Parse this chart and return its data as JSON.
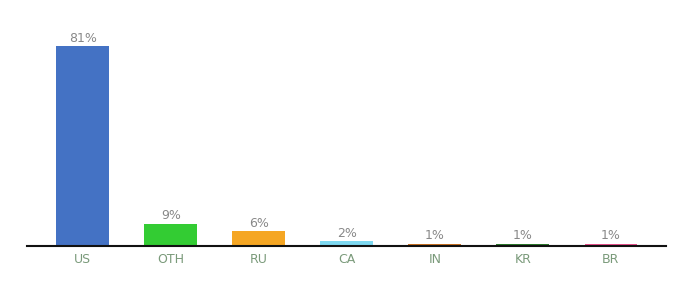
{
  "categories": [
    "US",
    "OTH",
    "RU",
    "CA",
    "IN",
    "KR",
    "BR"
  ],
  "values": [
    81,
    9,
    6,
    2,
    1,
    1,
    1
  ],
  "labels": [
    "81%",
    "9%",
    "6%",
    "2%",
    "1%",
    "1%",
    "1%"
  ],
  "bar_colors": [
    "#4472c4",
    "#33cc33",
    "#f5a623",
    "#7dd8f0",
    "#c87020",
    "#2d7a2d",
    "#e8508c"
  ],
  "tick_color": "#7a9a7a",
  "label_color": "#888888",
  "background_color": "#ffffff",
  "label_fontsize": 9,
  "tick_fontsize": 9,
  "ylim": [
    0,
    90
  ],
  "bar_width": 0.6
}
